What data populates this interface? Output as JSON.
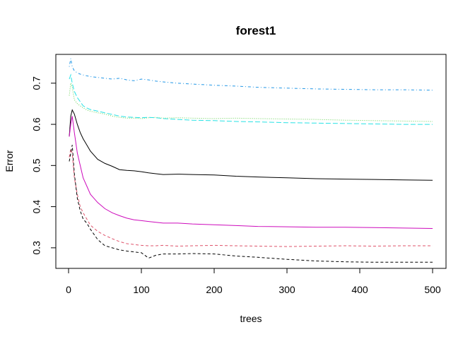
{
  "chart_data": {
    "type": "line",
    "title": "forest1",
    "xlabel": "trees",
    "ylabel": "Error",
    "xlim": [
      0,
      500
    ],
    "ylim": [
      0.25,
      0.77
    ],
    "xticks": [
      0,
      100,
      200,
      300,
      400,
      500
    ],
    "yticks": [
      0.3,
      0.4,
      0.5,
      0.6,
      0.7
    ],
    "grid": false,
    "legend": "none",
    "series": [
      {
        "color": "#000000",
        "linestyle": "solid",
        "x": [
          1,
          3,
          5,
          8,
          12,
          16,
          20,
          25,
          30,
          40,
          50,
          60,
          70,
          80,
          90,
          100,
          110,
          120,
          130,
          150,
          170,
          200,
          230,
          260,
          300,
          340,
          380,
          420,
          460,
          500
        ],
        "y": [
          0.57,
          0.62,
          0.635,
          0.625,
          0.6,
          0.58,
          0.565,
          0.55,
          0.535,
          0.515,
          0.505,
          0.498,
          0.49,
          0.488,
          0.487,
          0.485,
          0.482,
          0.48,
          0.478,
          0.479,
          0.478,
          0.477,
          0.474,
          0.472,
          0.47,
          0.468,
          0.467,
          0.466,
          0.465,
          0.464
        ]
      },
      {
        "color": "#df536b",
        "linestyle": "dashed",
        "x": [
          1,
          3,
          5,
          8,
          12,
          16,
          20,
          25,
          30,
          40,
          50,
          60,
          70,
          80,
          90,
          100,
          110,
          120,
          130,
          150,
          170,
          200,
          230,
          260,
          300,
          340,
          380,
          420,
          460,
          500
        ],
        "y": [
          0.52,
          0.54,
          0.53,
          0.47,
          0.43,
          0.4,
          0.385,
          0.37,
          0.355,
          0.34,
          0.33,
          0.322,
          0.315,
          0.31,
          0.308,
          0.306,
          0.305,
          0.305,
          0.306,
          0.304,
          0.305,
          0.306,
          0.305,
          0.304,
          0.303,
          0.304,
          0.305,
          0.304,
          0.305,
          0.305
        ]
      },
      {
        "color": "#61d04f",
        "linestyle": "dotted",
        "x": [
          1,
          3,
          5,
          8,
          12,
          16,
          20,
          25,
          30,
          40,
          50,
          60,
          70,
          80,
          90,
          100,
          110,
          120,
          130,
          150,
          170,
          200,
          230,
          260,
          300,
          340,
          380,
          420,
          460,
          500
        ],
        "y": [
          0.67,
          0.7,
          0.69,
          0.66,
          0.65,
          0.645,
          0.64,
          0.635,
          0.632,
          0.628,
          0.625,
          0.62,
          0.617,
          0.615,
          0.615,
          0.614,
          0.616,
          0.617,
          0.615,
          0.616,
          0.615,
          0.614,
          0.615,
          0.614,
          0.613,
          0.612,
          0.61,
          0.609,
          0.608,
          0.607
        ]
      },
      {
        "color": "#2297e6",
        "linestyle": "dotdash",
        "x": [
          1,
          3,
          5,
          8,
          12,
          16,
          20,
          25,
          30,
          40,
          50,
          60,
          70,
          80,
          90,
          100,
          110,
          120,
          130,
          150,
          170,
          200,
          230,
          260,
          300,
          340,
          380,
          420,
          460,
          500
        ],
        "y": [
          0.74,
          0.76,
          0.74,
          0.73,
          0.725,
          0.722,
          0.72,
          0.718,
          0.716,
          0.714,
          0.712,
          0.71,
          0.712,
          0.708,
          0.706,
          0.71,
          0.708,
          0.705,
          0.703,
          0.7,
          0.698,
          0.695,
          0.693,
          0.69,
          0.688,
          0.686,
          0.685,
          0.684,
          0.684,
          0.683
        ]
      },
      {
        "color": "#28e2e5",
        "linestyle": "longdash",
        "x": [
          1,
          3,
          5,
          8,
          12,
          16,
          20,
          25,
          30,
          40,
          50,
          60,
          70,
          80,
          90,
          100,
          110,
          120,
          130,
          150,
          170,
          200,
          230,
          260,
          300,
          340,
          380,
          420,
          460,
          500
        ],
        "y": [
          0.71,
          0.72,
          0.7,
          0.68,
          0.665,
          0.655,
          0.645,
          0.64,
          0.636,
          0.632,
          0.628,
          0.624,
          0.62,
          0.618,
          0.617,
          0.616,
          0.617,
          0.616,
          0.614,
          0.612,
          0.61,
          0.609,
          0.607,
          0.606,
          0.604,
          0.603,
          0.602,
          0.601,
          0.6,
          0.6
        ]
      },
      {
        "color": "#cd0bbc",
        "linestyle": "solid",
        "x": [
          1,
          3,
          5,
          8,
          12,
          16,
          20,
          25,
          30,
          40,
          50,
          60,
          70,
          80,
          90,
          100,
          110,
          120,
          130,
          150,
          170,
          200,
          230,
          260,
          300,
          340,
          380,
          420,
          460,
          500
        ],
        "y": [
          0.57,
          0.6,
          0.62,
          0.58,
          0.53,
          0.5,
          0.47,
          0.45,
          0.43,
          0.41,
          0.395,
          0.385,
          0.378,
          0.372,
          0.368,
          0.366,
          0.364,
          0.362,
          0.36,
          0.36,
          0.358,
          0.356,
          0.354,
          0.352,
          0.351,
          0.35,
          0.35,
          0.349,
          0.348,
          0.347
        ]
      },
      {
        "color": "#000000",
        "linestyle": "dashed",
        "x": [
          1,
          3,
          5,
          8,
          12,
          16,
          20,
          25,
          30,
          40,
          50,
          60,
          70,
          80,
          90,
          100,
          110,
          120,
          130,
          150,
          170,
          200,
          230,
          260,
          300,
          340,
          380,
          420,
          460,
          500
        ],
        "y": [
          0.51,
          0.53,
          0.55,
          0.48,
          0.42,
          0.39,
          0.37,
          0.36,
          0.345,
          0.32,
          0.305,
          0.3,
          0.295,
          0.292,
          0.29,
          0.288,
          0.275,
          0.282,
          0.285,
          0.285,
          0.286,
          0.285,
          0.28,
          0.277,
          0.272,
          0.268,
          0.266,
          0.265,
          0.265,
          0.265
        ]
      }
    ]
  }
}
